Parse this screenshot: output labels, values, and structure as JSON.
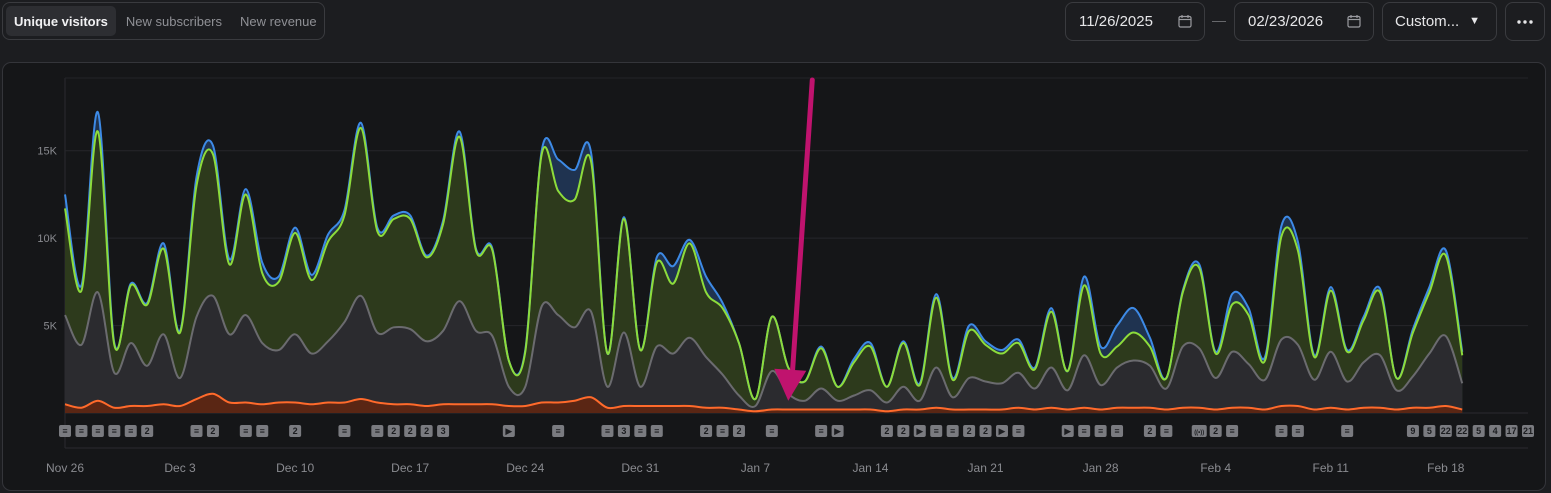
{
  "tabs": [
    {
      "label": "Unique visitors",
      "active": true
    },
    {
      "label": "New subscribers",
      "active": false
    },
    {
      "label": "New revenue",
      "active": false
    }
  ],
  "date_range": {
    "start": "11/26/2025",
    "end": "02/23/2026",
    "separator": "—"
  },
  "range_select": {
    "label": "Custom..."
  },
  "more_menu": {
    "icon": "more-horizontal-icon"
  },
  "colors": {
    "blue": "#3d8ae6",
    "green": "#8ddc3b",
    "gray": "#6b6b6f",
    "orange": "#ff6a2b",
    "arrow": "#c0136e",
    "background": "#151618"
  },
  "chart_data": {
    "type": "area",
    "x_start": "2025-11-26",
    "x_end": "2026-02-23",
    "ylim": [
      0,
      19500
    ],
    "yticks": [
      5000,
      10000,
      15000
    ],
    "ytick_labels": [
      "5K",
      "10K",
      "15K"
    ],
    "xtick_labels": [
      "Nov 26",
      "Dec 3",
      "Dec 10",
      "Dec 17",
      "Dec 24",
      "Dec 31",
      "Jan 7",
      "Jan 14",
      "Jan 21",
      "Jan 28",
      "Feb 4",
      "Feb 11",
      "Feb 18"
    ],
    "grid": true,
    "series": [
      {
        "color": "blue",
        "values": [
          12500,
          7300,
          17200,
          4000,
          7400,
          6300,
          9700,
          4700,
          13500,
          15300,
          8800,
          12800,
          8600,
          7800,
          10600,
          7900,
          10200,
          11600,
          16600,
          10600,
          11300,
          11300,
          9000,
          11000,
          16100,
          9400,
          9400,
          3000,
          3600,
          15000,
          14500,
          13900,
          14900,
          3400,
          11200,
          3600,
          8900,
          8400,
          9900,
          7800,
          6300,
          4000,
          800,
          5500,
          2600,
          1800,
          3800,
          1500,
          3100,
          4000,
          1500,
          4100,
          1700,
          6800,
          2000,
          5000,
          4100,
          3600,
          4200,
          2600,
          6000,
          2400,
          7800,
          3800,
          5000,
          6000,
          4300,
          2000,
          7000,
          8500,
          3500,
          6800,
          6000,
          3200,
          10700,
          9800,
          3300,
          7200,
          3600,
          5500,
          7100,
          2000,
          4800,
          7200,
          9300,
          3500
        ]
      },
      {
        "color": "green",
        "values": [
          11700,
          7000,
          16100,
          3900,
          7300,
          6200,
          9400,
          4600,
          13000,
          14800,
          8500,
          12500,
          8000,
          7500,
          10300,
          7600,
          9800,
          11300,
          16300,
          10400,
          11100,
          11100,
          8900,
          10800,
          15800,
          9300,
          9300,
          3000,
          3500,
          14800,
          12700,
          12200,
          14400,
          3400,
          11100,
          3600,
          8600,
          7400,
          9700,
          6900,
          6000,
          4000,
          800,
          5500,
          2600,
          1800,
          3700,
          1500,
          2900,
          3800,
          1500,
          4000,
          1600,
          6600,
          1900,
          4700,
          3900,
          3400,
          4000,
          2500,
          5800,
          2400,
          7300,
          3400,
          3800,
          4600,
          3800,
          2000,
          6900,
          8300,
          3400,
          6200,
          5600,
          3000,
          10100,
          9300,
          3200,
          7000,
          3500,
          5300,
          6900,
          2000,
          4600,
          6900,
          9000,
          3300
        ]
      },
      {
        "color": "gray",
        "values": [
          5600,
          3900,
          6900,
          2300,
          4000,
          2700,
          4500,
          2000,
          5500,
          6700,
          4500,
          5600,
          4000,
          3600,
          4500,
          3400,
          4100,
          5200,
          6700,
          4600,
          4900,
          4800,
          4100,
          4700,
          6400,
          4700,
          4400,
          1500,
          1500,
          6100,
          5600,
          4900,
          5800,
          1500,
          4600,
          1500,
          3800,
          3400,
          4300,
          3200,
          2200,
          1000,
          400,
          2400,
          1100,
          700,
          1400,
          700,
          1000,
          1300,
          600,
          1500,
          700,
          2600,
          900,
          2000,
          1800,
          1700,
          2300,
          1400,
          2600,
          1300,
          3300,
          1600,
          2600,
          3000,
          2700,
          1400,
          3800,
          3700,
          2000,
          3500,
          2800,
          1900,
          4200,
          3900,
          1900,
          3500,
          1800,
          2900,
          3300,
          1300,
          2100,
          3400,
          4400,
          1700
        ]
      },
      {
        "color": "orange",
        "values": [
          500,
          300,
          700,
          300,
          400,
          400,
          500,
          400,
          800,
          1100,
          600,
          600,
          500,
          600,
          600,
          500,
          600,
          600,
          800,
          600,
          500,
          500,
          400,
          500,
          500,
          500,
          500,
          400,
          400,
          600,
          600,
          700,
          900,
          300,
          400,
          400,
          400,
          400,
          400,
          300,
          300,
          200,
          100,
          200,
          200,
          200,
          200,
          200,
          200,
          200,
          100,
          200,
          200,
          300,
          200,
          200,
          200,
          200,
          300,
          200,
          300,
          200,
          300,
          200,
          300,
          300,
          300,
          200,
          300,
          300,
          200,
          300,
          300,
          200,
          400,
          400,
          200,
          300,
          200,
          300,
          300,
          200,
          300,
          300,
          400,
          200
        ]
      }
    ],
    "annotations": [
      {
        "x": "2025-11-26",
        "labels": [
          "≡"
        ]
      },
      {
        "x": "2025-11-27",
        "labels": [
          "≡"
        ]
      },
      {
        "x": "2025-11-28",
        "labels": [
          "≡"
        ]
      },
      {
        "x": "2025-11-29",
        "labels": [
          "≡"
        ]
      },
      {
        "x": "2025-11-30",
        "labels": [
          "≡"
        ]
      },
      {
        "x": "2025-12-01",
        "labels": [
          "2"
        ]
      },
      {
        "x": "2025-12-04",
        "labels": [
          "≡"
        ]
      },
      {
        "x": "2025-12-05",
        "labels": [
          "2"
        ]
      },
      {
        "x": "2025-12-07",
        "labels": [
          "≡"
        ]
      },
      {
        "x": "2025-12-08",
        "labels": [
          "≡"
        ]
      },
      {
        "x": "2025-12-10",
        "labels": [
          "2"
        ]
      },
      {
        "x": "2025-12-13",
        "labels": [
          "≡"
        ]
      },
      {
        "x": "2025-12-15",
        "labels": [
          "≡"
        ]
      },
      {
        "x": "2025-12-16",
        "labels": [
          "2"
        ]
      },
      {
        "x": "2025-12-17",
        "labels": [
          "2"
        ]
      },
      {
        "x": "2025-12-18",
        "labels": [
          "2"
        ]
      },
      {
        "x": "2025-12-19",
        "labels": [
          "3"
        ]
      },
      {
        "x": "2025-12-23",
        "labels": [
          "▶"
        ]
      },
      {
        "x": "2025-12-26",
        "labels": [
          "≡"
        ]
      },
      {
        "x": "2025-12-29",
        "labels": [
          "≡"
        ]
      },
      {
        "x": "2025-12-30",
        "labels": [
          "3"
        ]
      },
      {
        "x": "2025-12-31",
        "labels": [
          "≡"
        ]
      },
      {
        "x": "2026-01-01",
        "labels": [
          "≡"
        ]
      },
      {
        "x": "2026-01-04",
        "labels": [
          "2"
        ]
      },
      {
        "x": "2026-01-05",
        "labels": [
          "≡"
        ]
      },
      {
        "x": "2026-01-06",
        "labels": [
          "2"
        ]
      },
      {
        "x": "2026-01-08",
        "labels": [
          "≡"
        ]
      },
      {
        "x": "2026-01-11",
        "labels": [
          "≡"
        ]
      },
      {
        "x": "2026-01-12",
        "labels": [
          "▶"
        ]
      },
      {
        "x": "2026-01-15",
        "labels": [
          "2"
        ]
      },
      {
        "x": "2026-01-16",
        "labels": [
          "2"
        ]
      },
      {
        "x": "2026-01-17",
        "labels": [
          "▶"
        ]
      },
      {
        "x": "2026-01-18",
        "labels": [
          "≡"
        ]
      },
      {
        "x": "2026-01-19",
        "labels": [
          "≡"
        ]
      },
      {
        "x": "2026-01-20",
        "labels": [
          "2"
        ]
      },
      {
        "x": "2026-01-21",
        "labels": [
          "2"
        ]
      },
      {
        "x": "2026-01-22",
        "labels": [
          "▶"
        ]
      },
      {
        "x": "2026-01-23",
        "labels": [
          "≡"
        ]
      },
      {
        "x": "2026-01-26",
        "labels": [
          "▶"
        ]
      },
      {
        "x": "2026-01-27",
        "labels": [
          "≡"
        ]
      },
      {
        "x": "2026-01-28",
        "labels": [
          "≡"
        ]
      },
      {
        "x": "2026-01-29",
        "labels": [
          "≡"
        ]
      },
      {
        "x": "2026-01-31",
        "labels": [
          "2"
        ]
      },
      {
        "x": "2026-02-01",
        "labels": [
          "≡"
        ]
      },
      {
        "x": "2026-02-03",
        "labels": [
          "((•))"
        ]
      },
      {
        "x": "2026-02-04",
        "labels": [
          "2"
        ]
      },
      {
        "x": "2026-02-05",
        "labels": [
          "≡"
        ]
      },
      {
        "x": "2026-02-08",
        "labels": [
          "≡"
        ]
      },
      {
        "x": "2026-02-09",
        "labels": [
          "≡"
        ]
      },
      {
        "x": "2026-02-12",
        "labels": [
          "≡"
        ]
      },
      {
        "x": "2026-02-16",
        "labels": [
          "9"
        ]
      },
      {
        "x": "2026-02-17",
        "labels": [
          "5"
        ]
      },
      {
        "x": "2026-02-18",
        "labels": [
          "22"
        ]
      },
      {
        "x": "2026-02-19",
        "labels": [
          "22"
        ]
      },
      {
        "x": "2026-02-20",
        "labels": [
          "5"
        ]
      },
      {
        "x": "2026-02-21",
        "labels": [
          "4"
        ]
      },
      {
        "x": "2026-02-22",
        "labels": [
          "17"
        ]
      },
      {
        "x": "2026-02-23",
        "labels": [
          "21"
        ]
      }
    ],
    "pointer": {
      "x": "2026-01-09",
      "y": 700
    }
  }
}
